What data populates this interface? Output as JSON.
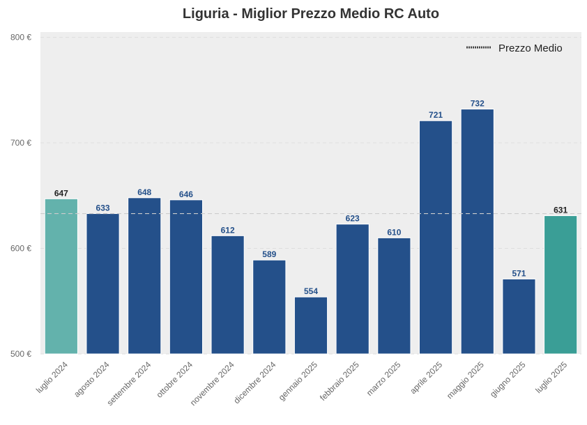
{
  "chart_data": {
    "type": "bar",
    "title": "Liguria - Miglior Prezzo Medio RC Auto",
    "xlabel": "",
    "ylabel": "",
    "categories": [
      "luglio 2024",
      "agosto 2024",
      "settembre 2024",
      "ottobre 2024",
      "novembre 2024",
      "dicembre 2024",
      "gennaio 2025",
      "febbraio 2025",
      "marzo 2025",
      "aprile 2025",
      "maggio 2025",
      "giugno 2025",
      "luglio 2025"
    ],
    "values": [
      647,
      633,
      648,
      646,
      612,
      589,
      554,
      623,
      610,
      721,
      732,
      571,
      631
    ],
    "value_labels": [
      "647",
      "633",
      "648",
      "646",
      "612",
      "589",
      "554",
      "623",
      "610",
      "721",
      "732",
      "571",
      "631"
    ],
    "bar_colors": [
      "#63b2ac",
      "#24508a",
      "#24508a",
      "#24508a",
      "#24508a",
      "#24508a",
      "#24508a",
      "#24508a",
      "#24508a",
      "#24508a",
      "#24508a",
      "#24508a",
      "#3a9e96"
    ],
    "label_colors": [
      "#222222",
      "#24508a",
      "#24508a",
      "#24508a",
      "#24508a",
      "#24508a",
      "#24508a",
      "#24508a",
      "#24508a",
      "#24508a",
      "#24508a",
      "#24508a",
      "#222222"
    ],
    "ylim": [
      500,
      805
    ],
    "yticks": [
      500,
      600,
      700,
      800
    ],
    "ytick_labels": [
      "500 €",
      "600 €",
      "700 €",
      "800 €"
    ],
    "reference_line": {
      "name": "Prezzo Medio",
      "value": 633
    },
    "legend": {
      "position": "top-right",
      "entries": [
        "Prezzo Medio"
      ]
    },
    "grid": true,
    "colors": {
      "plot_background": "#eeeeee",
      "grid": "#dddddd",
      "reference_line": "#cccccc",
      "legend_line": "#444444"
    }
  }
}
